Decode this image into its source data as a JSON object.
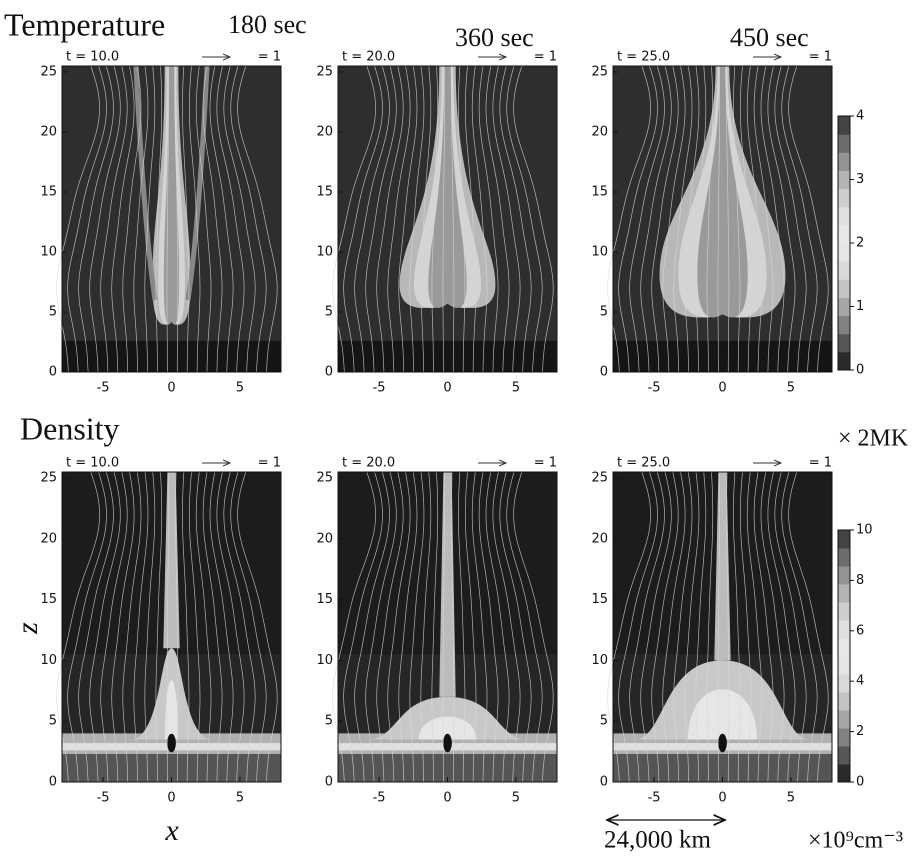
{
  "rows": [
    {
      "label": "Temperature",
      "colorbar": {
        "lim": [
          0,
          4
        ],
        "ticks": [
          0,
          1,
          2,
          3,
          4
        ],
        "unit": "× 2MK"
      }
    },
    {
      "label": "Density",
      "colorbar": {
        "lim": [
          0,
          10
        ],
        "ticks": [
          0,
          2,
          4,
          6,
          8,
          10
        ],
        "unit": "×10⁹cm⁻³"
      }
    }
  ],
  "times": [
    "180 sec",
    "360 sec",
    "450 sec"
  ],
  "panels": [
    {
      "time_label": "t = 10.0",
      "arrow_label": "= 1"
    },
    {
      "time_label": "t = 20.0",
      "arrow_label": "= 1"
    },
    {
      "time_label": "t = 25.0",
      "arrow_label": "= 1"
    },
    {
      "time_label": "t = 10.0",
      "arrow_label": "= 1"
    },
    {
      "time_label": "t = 20.0",
      "arrow_label": "= 1"
    },
    {
      "time_label": "t = 25.0",
      "arrow_label": "= 1"
    }
  ],
  "xlim": [
    -8,
    8
  ],
  "xticks": [
    -5,
    0,
    5
  ],
  "ylim": [
    0,
    25.5
  ],
  "yticks": [
    0,
    5,
    10,
    15,
    20,
    25
  ],
  "xlabel": "x",
  "ylabel": "z",
  "scale_label": "24,000 km"
}
